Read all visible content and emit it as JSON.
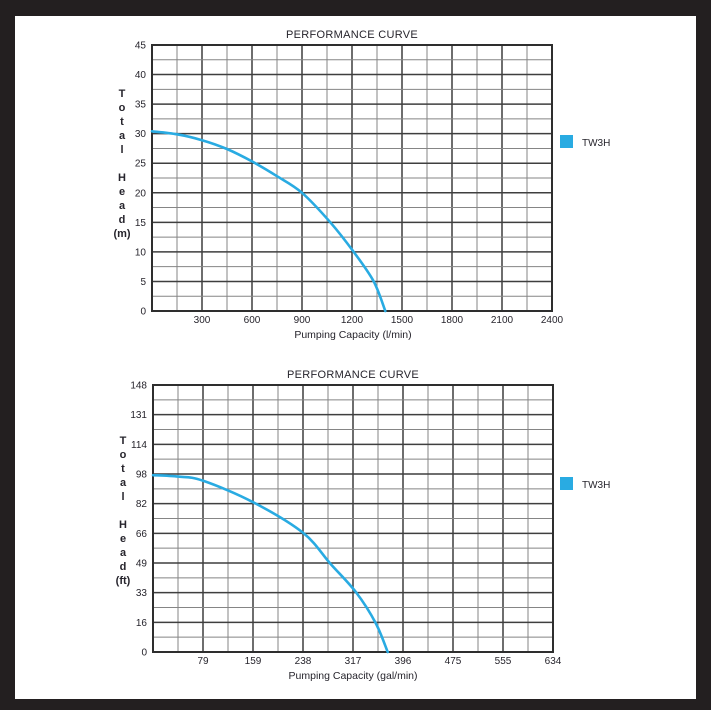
{
  "window": {
    "background": "#ffffff",
    "frame_color": "#231f20"
  },
  "colors": {
    "accent": "#29abe2",
    "plot_border": "#2e2e2e",
    "grid_major": "#3f3f3f",
    "grid_minor": "#858585",
    "text": "#26242c"
  },
  "legend_label": "TW3H",
  "chart_data": [
    {
      "type": "line",
      "title": "PERFORMANCE CURVE",
      "xlabel": "Pumping Capacity (l/min)",
      "ylabel": "Total Head (m)",
      "ylabel_lines": [
        "T",
        "o",
        "t",
        "a",
        "l",
        "",
        "H",
        "e",
        "a",
        "d",
        "(m)"
      ],
      "xlim": [
        0,
        2400
      ],
      "ylim": [
        0,
        45
      ],
      "x_tick_labels": [
        "300",
        "600",
        "900",
        "1200",
        "1500",
        "1800",
        "2100",
        "2400"
      ],
      "y_tick_labels": [
        "0",
        "5",
        "10",
        "15",
        "20",
        "25",
        "30",
        "35",
        "40",
        "45"
      ],
      "grid": {
        "cols": 16,
        "rows": 18,
        "grid_on": true
      },
      "legend": {
        "label": "TW3H",
        "color": "#29abe2",
        "position": "right"
      },
      "series": [
        {
          "name": "TW3H",
          "color": "#29abe2",
          "points": [
            [
              0,
              30.4
            ],
            [
              150,
              29.9
            ],
            [
              300,
              28.9
            ],
            [
              450,
              27.4
            ],
            [
              600,
              25.3
            ],
            [
              750,
              22.8
            ],
            [
              900,
              20
            ],
            [
              1070,
              15
            ],
            [
              1210,
              10
            ],
            [
              1330,
              5
            ],
            [
              1400,
              0
            ]
          ]
        }
      ]
    },
    {
      "type": "line",
      "title": "PERFORMANCE CURVE",
      "xlabel": "Pumping Capacity (gal/min)",
      "ylabel": "Total Head (ft)",
      "ylabel_lines": [
        "T",
        "o",
        "t",
        "a",
        "l",
        "",
        "H",
        "e",
        "a",
        "d",
        "(ft)"
      ],
      "xlim": [
        0,
        634
      ],
      "ylim": [
        0,
        148
      ],
      "x_tick_labels": [
        "79",
        "159",
        "238",
        "317",
        "396",
        "475",
        "555",
        "634"
      ],
      "y_tick_labels": [
        "0",
        "16",
        "33",
        "49",
        "66",
        "82",
        "98",
        "114",
        "131",
        "148"
      ],
      "grid": {
        "cols": 16,
        "rows": 18,
        "grid_on": true
      },
      "legend": {
        "label": "TW3H",
        "color": "#29abe2",
        "position": "right"
      },
      "series": [
        {
          "name": "TW3H",
          "color": "#29abe2",
          "points": [
            [
              0,
              98
            ],
            [
              40,
              97.2
            ],
            [
              79,
              95
            ],
            [
              159,
              83
            ],
            [
              238,
              66
            ],
            [
              281,
              49
            ],
            [
              322,
              33
            ],
            [
              353,
              16
            ],
            [
              372,
              0
            ]
          ]
        }
      ]
    }
  ]
}
